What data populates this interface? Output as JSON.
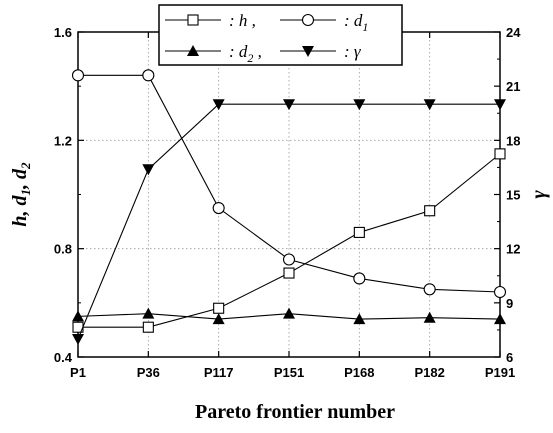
{
  "chart_data": {
    "type": "line",
    "categories": [
      "P1",
      "P36",
      "P117",
      "P151",
      "P168",
      "P182",
      "P191"
    ],
    "xlabel": "Pareto frontier number",
    "ylabel_left_parts": [
      "h",
      ", ",
      "d",
      "1",
      ", ",
      "d",
      "2"
    ],
    "ylabel_right": "γ",
    "ylim_left": [
      0.4,
      1.6
    ],
    "yticks_left": [
      "0.4",
      "0.8",
      "1.2",
      "1.6"
    ],
    "ylim_right": [
      6,
      24
    ],
    "yticks_right": [
      "6",
      "9",
      "12",
      "15",
      "18",
      "21",
      "24"
    ],
    "grid": true,
    "legend_position": "top",
    "series": [
      {
        "name": "h",
        "axis": "left",
        "marker": "square-open",
        "values": [
          0.51,
          0.51,
          0.58,
          0.71,
          0.86,
          0.94,
          1.15
        ]
      },
      {
        "name": "d1",
        "axis": "left",
        "marker": "circle-open",
        "values": [
          1.44,
          1.44,
          0.95,
          0.76,
          0.69,
          0.65,
          0.64
        ]
      },
      {
        "name": "d2",
        "axis": "left",
        "marker": "triangle-up-filled",
        "values": [
          0.55,
          0.56,
          0.54,
          0.56,
          0.54,
          0.545,
          0.54
        ]
      },
      {
        "name": "γ",
        "axis": "right",
        "marker": "triangle-down-filled",
        "values": [
          7.0,
          16.4,
          20.0,
          20.0,
          20.0,
          20.0,
          20.0
        ]
      }
    ],
    "legend": [
      {
        "label_main": ": h ,",
        "sub": ""
      },
      {
        "label_main": ": d",
        "sub": "1"
      },
      {
        "label_main": ": d",
        "sub": "2",
        "suffix": " ,"
      },
      {
        "label_main": ": γ",
        "sub": ""
      }
    ]
  }
}
